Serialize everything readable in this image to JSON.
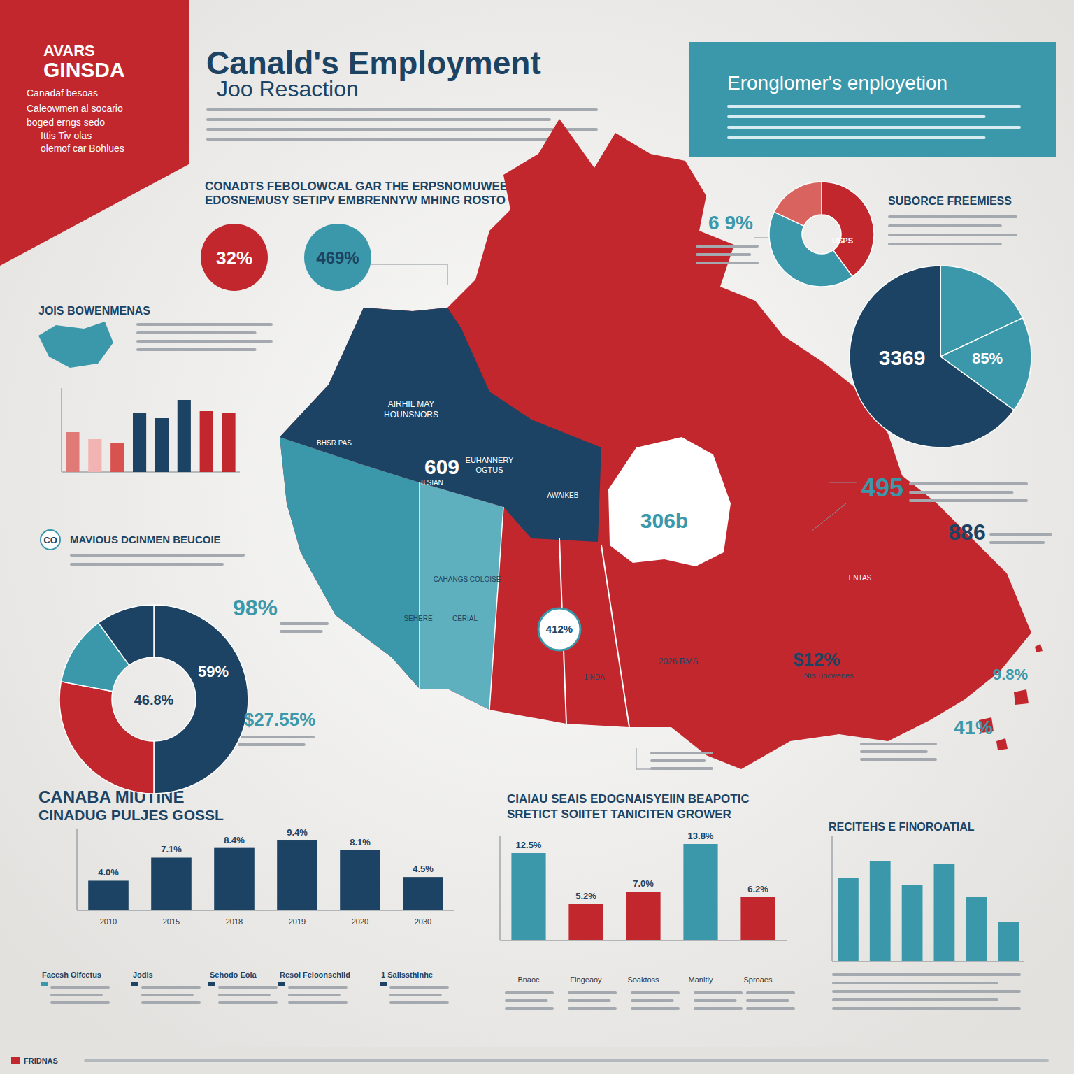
{
  "header": {
    "logo": [
      "AVARS",
      "GINSDA"
    ],
    "tagline": [
      "Canadaf besoas",
      "Caleowmen al socario",
      "boged erngs sedo",
      "Ittis Tiv olas",
      "olemof car Bohlues"
    ],
    "title": "Canald's Employment",
    "subtitle": "Joo Resaction"
  },
  "banner": {
    "title": "Eronglomer's enployetion"
  },
  "headings": [
    "CONADTS FEBOLOWCAL GAR THE ERPSNOMUWEET'S",
    "EDOSNEMUSY SETIPV EMBRENNYW MHING ROSTO",
    "MAVIOUS DCINMEN BEUCOIE",
    "SUBORCE FREEMIESS"
  ],
  "annotations": [
    "32%",
    "469%",
    "6 9%",
    "USPS",
    "3369",
    "85%",
    "495",
    "886",
    "41%",
    "9.8%",
    "306b",
    "609",
    "412%",
    "$12%",
    "2026 RMS",
    "98%",
    "$27.55%",
    "46.8%",
    "59%",
    "CO"
  ],
  "map": {
    "labels": [
      "AIRHIL MAY",
      "HOUNSNORS",
      "BHSR PAS",
      "EUHANNERY",
      "OGTUS",
      "8 SIAN",
      "AWAIKEB",
      "CAHANGS COLOISE",
      "SEHERE",
      "CERIAL",
      "1 NDA",
      "Nrs Bocwenes",
      "ENTAS"
    ]
  },
  "legend_items": [
    "Facesh Olfeetus",
    "Jodis",
    "Sehodo Eola",
    "Resol Feloonsehild",
    "1 Salissthinhe"
  ],
  "footer": {
    "text": "FRIDNAS"
  },
  "chart_data": [
    {
      "type": "bar",
      "title": "JOIS BOWENMENAS",
      "values": [
        57,
        47,
        42,
        85,
        77,
        103,
        87,
        85
      ],
      "colors": [
        "#e07a76",
        "#f2b4b2",
        "#d8524f",
        "#1c4363",
        "#1c4363",
        "#1c4363",
        "#c1272d",
        "#c1272d"
      ],
      "ylim": [
        0,
        120
      ],
      "tick_labels": false
    },
    {
      "type": "bar",
      "title": "CANABA MIUTINE",
      "subtitle": "CINADUG PULJES GOSSL",
      "categories": [
        "2010",
        "2015",
        "2018",
        "2019",
        "2020",
        "2030"
      ],
      "values": [
        4.0,
        7.1,
        8.4,
        9.4,
        8.1,
        4.5
      ],
      "value_labels": [
        "4.0%",
        "7.1%",
        "8.4%",
        "9.4%",
        "8.1%",
        "4.5%"
      ],
      "color": "#1c4363",
      "ylim": [
        0,
        11
      ],
      "data_labels": true,
      "tick_labels": "x"
    },
    {
      "type": "bar",
      "title": "CIAIAU SEAIS EDOGNAISYEIIN BEAPOTIC",
      "subtitle": "SRETICT SOIITET TANICITEN GROWER",
      "categories": [
        "Bnaoc",
        "Fingeaoy",
        "Soaktoss",
        "Manltly",
        "Sproaes"
      ],
      "values": [
        12.5,
        5.2,
        7.0,
        13.8,
        6.2
      ],
      "value_labels": [
        "12.5%",
        "5.2%",
        "7.0%",
        "13.8%",
        "6.2%"
      ],
      "colors": [
        "#3b98aa",
        "#c1272d",
        "#c1272d",
        "#3b98aa",
        "#c1272d"
      ],
      "ylim": [
        0,
        15
      ],
      "data_labels": true,
      "tick_labels": "x"
    },
    {
      "type": "bar",
      "title": "RECITEHS E FINOROATIAL",
      "values": [
        120,
        143,
        110,
        140,
        92,
        57
      ],
      "color": "#3b98aa",
      "ylim": [
        0,
        180
      ],
      "tick_labels": false
    },
    {
      "type": "donut",
      "values": [
        40,
        42,
        18
      ],
      "colors": [
        "#c1272d",
        "#3b98aa",
        "#d9645f"
      ]
    },
    {
      "type": "pie",
      "values": [
        18,
        17,
        65
      ],
      "colors": [
        "#3b98aa",
        "#3b98aa",
        "#1c4363"
      ]
    },
    {
      "type": "donut",
      "values": [
        50,
        28,
        12,
        10
      ],
      "colors": [
        "#1c4363",
        "#c1272d",
        "#3b98aa",
        "#1c4363"
      ]
    }
  ]
}
